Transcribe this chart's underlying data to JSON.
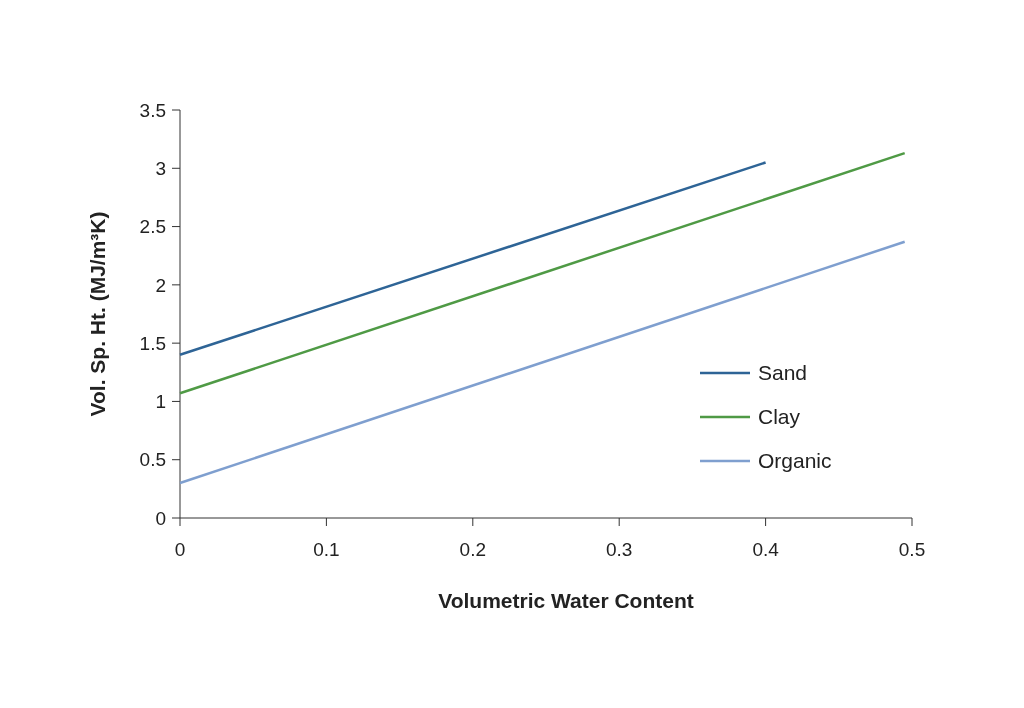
{
  "chart_data": {
    "type": "line",
    "xlabel": "Volumetric Water Content",
    "ylabel": "Vol. Sp. Ht. (MJ/m³K)",
    "series": [
      {
        "name": "Sand",
        "color": "#2e6496",
        "x": [
          0,
          0.4
        ],
        "values": [
          1.4,
          3.05
        ]
      },
      {
        "name": "Clay",
        "color": "#4f9a45",
        "x": [
          0,
          0.495
        ],
        "values": [
          1.07,
          3.13
        ]
      },
      {
        "name": "Organic",
        "color": "#7f9fcf",
        "x": [
          0,
          0.495
        ],
        "values": [
          0.3,
          2.37
        ]
      }
    ],
    "xlim": [
      0,
      0.5
    ],
    "xticks": [
      0,
      0.1,
      0.2,
      0.3,
      0.4,
      0.5
    ],
    "ylim": [
      0,
      3.5
    ],
    "yticks": [
      0,
      0.5,
      1,
      1.5,
      2,
      2.5,
      3,
      3.5
    ],
    "grid": false,
    "legend": "right",
    "marker": "none",
    "line_style": "solid"
  }
}
